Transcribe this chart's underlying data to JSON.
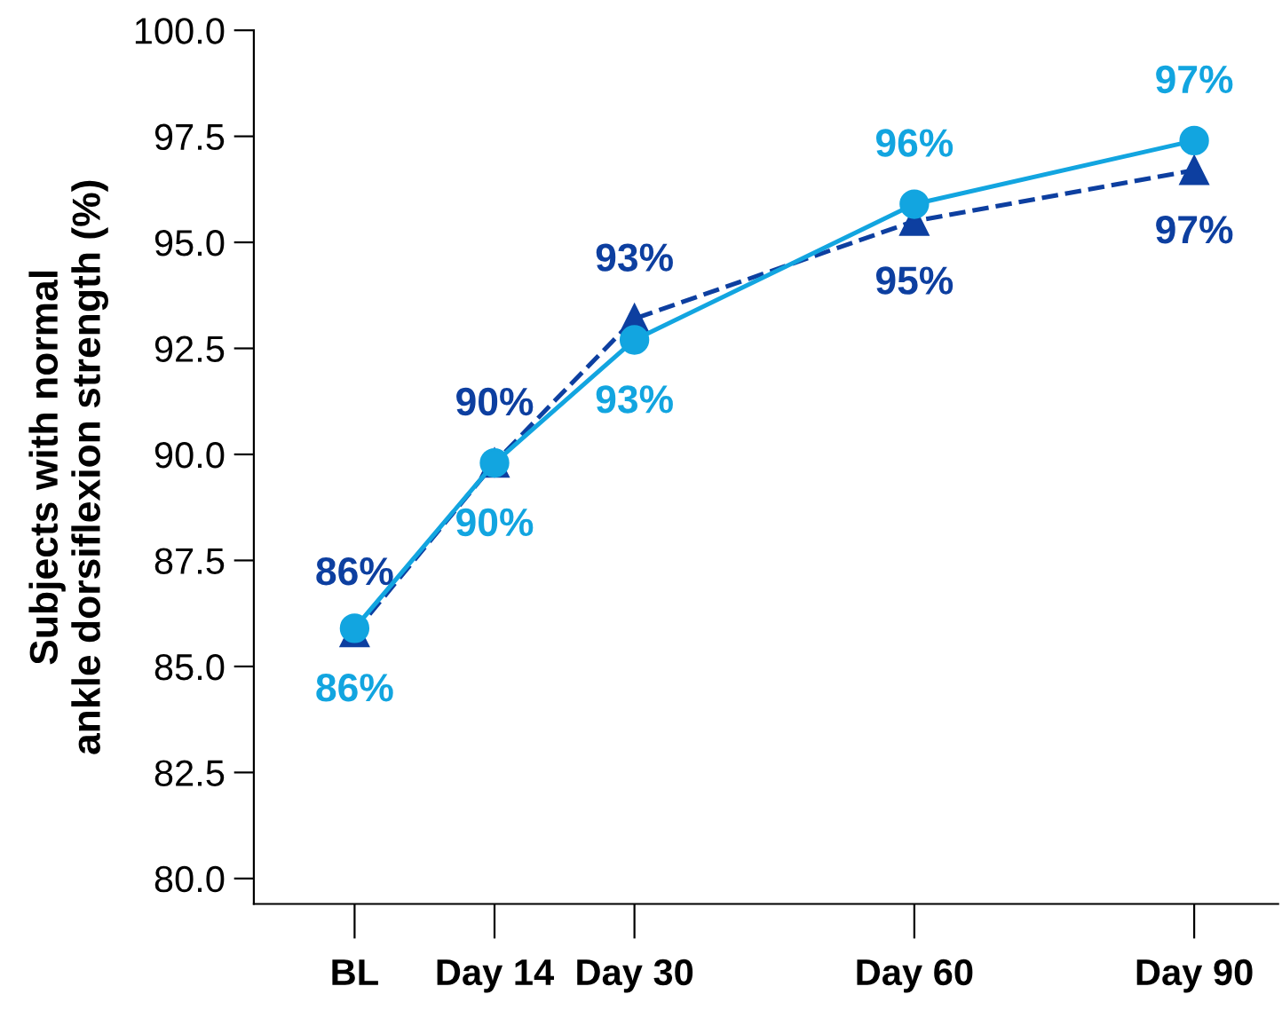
{
  "chart_data": {
    "type": "line",
    "ylabel": "Subjects with normal\nankle dorsiflexion strength (%)",
    "categories": [
      "BL",
      "Day 14",
      "Day 30",
      null,
      "Day 60",
      null,
      "Day 90"
    ],
    "ylim": [
      79.4,
      100
    ],
    "yticks": [
      {
        "value": 80,
        "label": "80.0"
      },
      {
        "value": 82.5,
        "label": "82.5"
      },
      {
        "value": 85,
        "label": "85.0"
      },
      {
        "value": 87.5,
        "label": "87.5"
      },
      {
        "value": 90,
        "label": "90.0"
      },
      {
        "value": 92.5,
        "label": "92.5"
      },
      {
        "value": 95,
        "label": "95.0"
      },
      {
        "value": 97.5,
        "label": "97.5"
      },
      {
        "value": 100,
        "label": "100.0"
      }
    ],
    "grid": false,
    "legend": false,
    "series": [
      {
        "color": "#0d3fa0",
        "marker": "triangle",
        "line_style": "dashed",
        "values": [
          85.8,
          89.8,
          93.2,
          null,
          95.5,
          null,
          96.7
        ],
        "value_labels": [
          "86%",
          "90%",
          "93%",
          null,
          "95%",
          null,
          "97%"
        ]
      },
      {
        "color": "#12a5e0",
        "marker": "circle",
        "line_style": "solid",
        "values": [
          85.9,
          89.8,
          92.7,
          null,
          95.9,
          null,
          97.4
        ],
        "value_labels": [
          "86%",
          "90%",
          "93%",
          null,
          "96%",
          null,
          "97%"
        ]
      }
    ]
  }
}
